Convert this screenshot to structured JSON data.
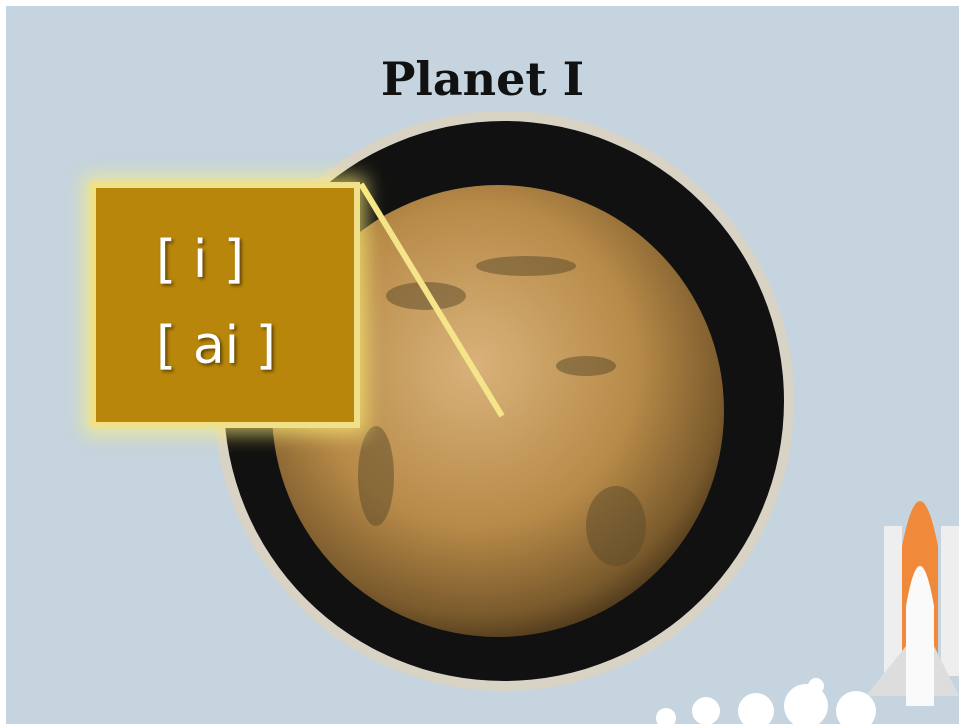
{
  "header": {
    "title": "Planet I"
  },
  "label_box": {
    "lines": [
      "[ i ]",
      "[ ai ]"
    ]
  }
}
